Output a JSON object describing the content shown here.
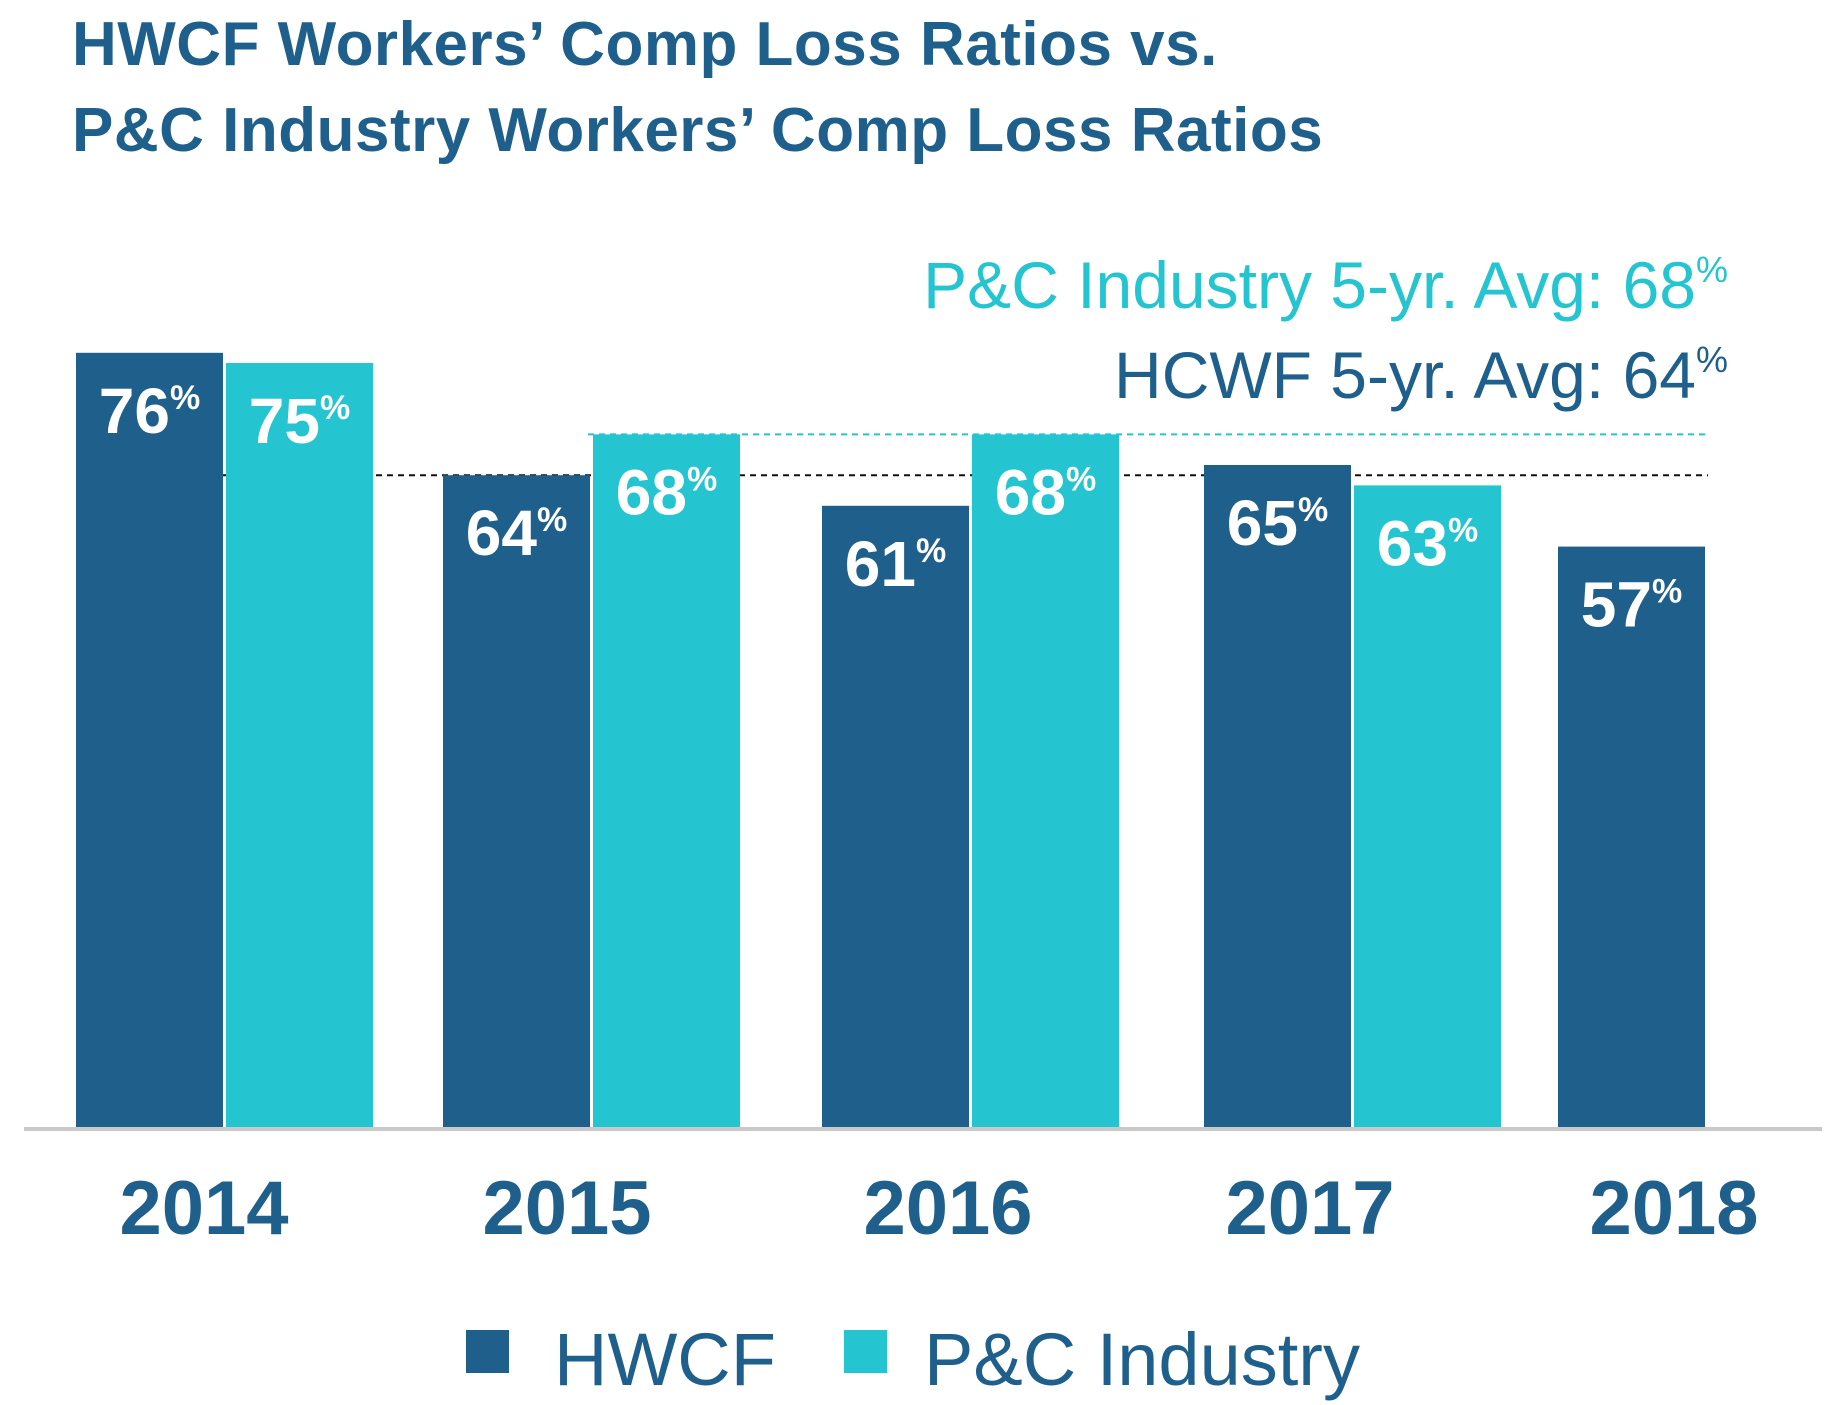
{
  "chart_data": {
    "type": "bar",
    "title_lines": [
      "HWCF Workers’ Comp Loss Ratios vs.",
      "P&C Industry Workers’ Comp Loss Ratios"
    ],
    "categories": [
      "2014",
      "2015",
      "2016",
      "2017",
      "2018"
    ],
    "series": [
      {
        "name": "HWCF",
        "color": "#1e5f8c",
        "values": [
          76,
          64,
          61,
          65,
          57
        ],
        "labels": [
          "76",
          "64",
          "61",
          "65",
          "57"
        ]
      },
      {
        "name": "P&C Industry",
        "color": "#24c4d0",
        "values": [
          75,
          68,
          68,
          63,
          null
        ],
        "labels": [
          "75",
          "68",
          "68",
          "63",
          null
        ]
      }
    ],
    "value_suffix": "%",
    "reference_lines": [
      {
        "name": "P&C Industry 5-yr. Avg",
        "value": 68,
        "label": "P&C Industry 5-yr. Avg: 68",
        "color": "#24c4d0",
        "style": "dashed"
      },
      {
        "name": "HCWF 5-yr. Avg",
        "value": 64,
        "label": "HCWF 5-yr. Avg: 64",
        "color": "#111111",
        "style": "dashed"
      }
    ],
    "legend": [
      {
        "label": "HWCF",
        "color": "#1e5f8c"
      },
      {
        "label": "P&C Industry",
        "color": "#24c4d0"
      }
    ],
    "legend_position": "bottom",
    "xlabel": "",
    "ylabel": "",
    "ylim": [
      0,
      100
    ],
    "grid": false,
    "baseline_color": "#c9c9c9"
  }
}
